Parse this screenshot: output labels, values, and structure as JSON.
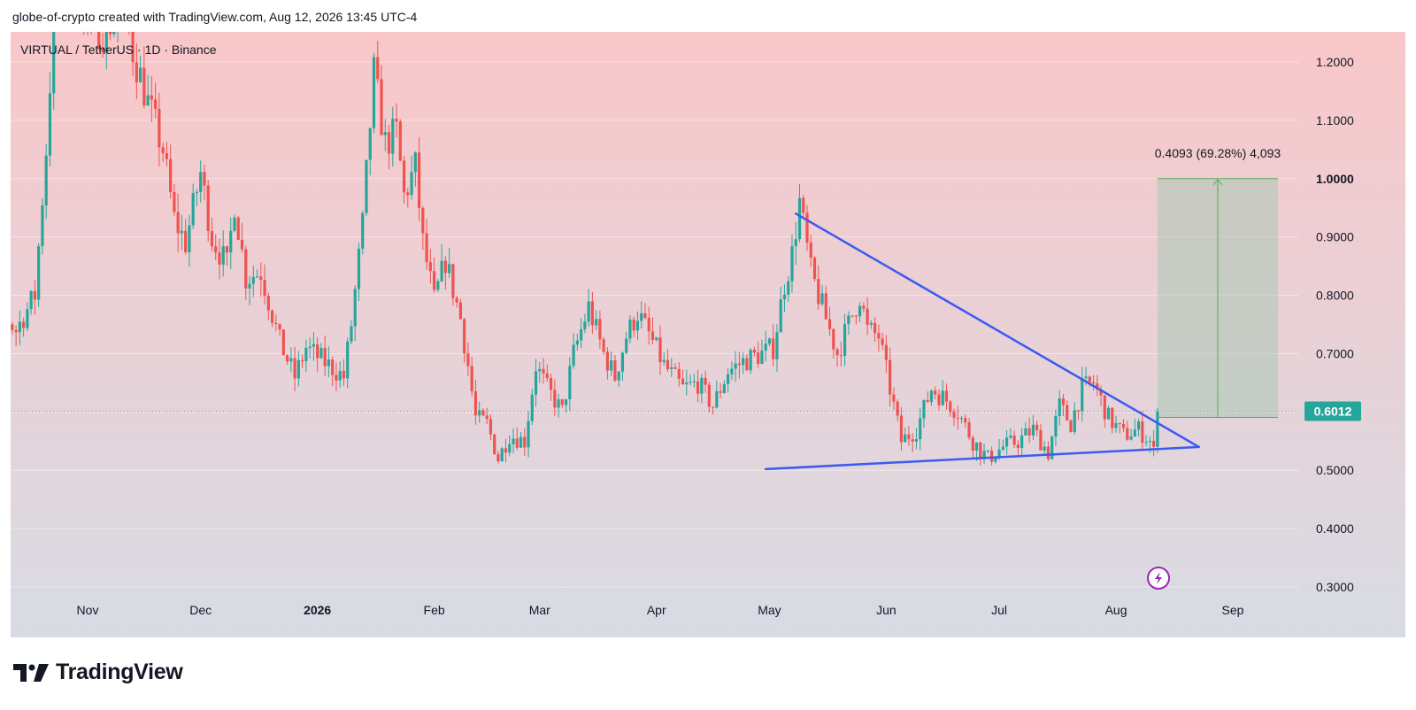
{
  "header": {
    "title": "globe-of-crypto created with TradingView.com, Aug 12, 2026 13:45 UTC-4"
  },
  "brand": {
    "name": "TradingView"
  },
  "colors": {
    "up": "#26a69a",
    "down": "#ef5350",
    "trendline": "#3b5bf0",
    "measure_zone": "#a9c9b6",
    "measure_line": "#4caf50",
    "bg_top": "#f9c7c9",
    "bg_bottom": "#d8dbe4"
  },
  "chart_data": {
    "type": "candlestick",
    "symbol_label": "VIRTUAL / TetherUS · 1D · Binance",
    "y_ticks": [
      "1.2000",
      "1.1000",
      "1.0000",
      "0.9000",
      "0.8000",
      "0.7000",
      "0.6000",
      "0.5000",
      "0.4000",
      "0.3000"
    ],
    "y_tick_values": [
      1.2,
      1.1,
      1.0,
      0.9,
      0.8,
      0.7,
      0.6,
      0.5,
      0.4,
      0.3
    ],
    "ylim": [
      0.25,
      1.26
    ],
    "x_tick_labels": [
      "Nov",
      "Dec",
      "2026",
      "Feb",
      "Mar",
      "Apr",
      "May",
      "Jun",
      "Jul",
      "Aug",
      "Sep"
    ],
    "x_tick_dates": [
      "2025-11-01",
      "2025-12-01",
      "2026-01-01",
      "2026-02-01",
      "2026-03-01",
      "2026-04-01",
      "2026-05-01",
      "2026-06-01",
      "2026-07-01",
      "2026-08-01",
      "2026-09-01"
    ],
    "last_price": "0.6012",
    "last_price_value": 0.6012,
    "measure": {
      "label": "0.4093 (69.28%) 4,093",
      "from_price": 0.5907,
      "to_price": 1.0,
      "from_date": "2026-08-12",
      "to_date": "2026-09-13"
    },
    "trendlines": [
      {
        "name": "descending resistance",
        "from": {
          "date": "2026-05-08",
          "price": 0.94
        },
        "to": {
          "date": "2026-08-23",
          "price": 0.54
        }
      },
      {
        "name": "ascending support",
        "from": {
          "date": "2026-04-30",
          "price": 0.502
        },
        "to": {
          "date": "2026-08-23",
          "price": 0.54
        }
      }
    ],
    "anchors": [
      [
        "2025-10-01",
        0.77
      ],
      [
        "2025-10-04",
        0.86
      ],
      [
        "2025-10-08",
        0.78
      ],
      [
        "2025-10-13",
        0.74
      ],
      [
        "2025-10-18",
        0.8
      ],
      [
        "2025-10-21",
        1.05
      ],
      [
        "2025-10-23",
        1.28
      ],
      [
        "2025-10-27",
        1.33
      ],
      [
        "2025-11-02",
        1.27
      ],
      [
        "2025-11-06",
        1.25
      ],
      [
        "2025-11-10",
        1.32
      ],
      [
        "2025-11-13",
        1.22
      ],
      [
        "2025-11-17",
        1.13
      ],
      [
        "2025-11-21",
        1.05
      ],
      [
        "2025-11-24",
        0.93
      ],
      [
        "2025-11-27",
        0.89
      ],
      [
        "2025-12-01",
        1.01
      ],
      [
        "2025-12-04",
        0.9
      ],
      [
        "2025-12-08",
        0.85
      ],
      [
        "2025-12-10",
        0.96
      ],
      [
        "2025-12-13",
        0.83
      ],
      [
        "2025-12-17",
        0.84
      ],
      [
        "2025-12-22",
        0.72
      ],
      [
        "2025-12-26",
        0.66
      ],
      [
        "2025-12-29",
        0.71
      ],
      [
        "2026-01-04",
        0.68
      ],
      [
        "2026-01-08",
        0.66
      ],
      [
        "2026-01-10",
        0.75
      ],
      [
        "2026-01-13",
        0.92
      ],
      [
        "2026-01-16",
        1.18
      ],
      [
        "2026-01-19",
        1.06
      ],
      [
        "2026-01-22",
        1.08
      ],
      [
        "2026-01-24",
        0.97
      ],
      [
        "2026-01-27",
        1.02
      ],
      [
        "2026-01-29",
        0.89
      ],
      [
        "2026-02-01",
        0.79
      ],
      [
        "2026-02-04",
        0.86
      ],
      [
        "2026-02-08",
        0.76
      ],
      [
        "2026-02-10",
        0.68
      ],
      [
        "2026-02-12",
        0.59
      ],
      [
        "2026-02-15",
        0.58
      ],
      [
        "2026-02-18",
        0.52
      ],
      [
        "2026-02-21",
        0.56
      ],
      [
        "2026-02-25",
        0.55
      ],
      [
        "2026-02-28",
        0.68
      ],
      [
        "2026-03-03",
        0.64
      ],
      [
        "2026-03-07",
        0.6
      ],
      [
        "2026-03-10",
        0.7
      ],
      [
        "2026-03-14",
        0.78
      ],
      [
        "2026-03-18",
        0.7
      ],
      [
        "2026-03-21",
        0.66
      ],
      [
        "2026-03-24",
        0.73
      ],
      [
        "2026-03-27",
        0.77
      ],
      [
        "2026-03-31",
        0.72
      ],
      [
        "2026-04-03",
        0.68
      ],
      [
        "2026-04-08",
        0.64
      ],
      [
        "2026-04-12",
        0.65
      ],
      [
        "2026-04-16",
        0.61
      ],
      [
        "2026-04-20",
        0.67
      ],
      [
        "2026-04-25",
        0.69
      ],
      [
        "2026-04-29",
        0.7
      ],
      [
        "2026-05-02",
        0.71
      ],
      [
        "2026-05-05",
        0.82
      ],
      [
        "2026-05-07",
        0.87
      ],
      [
        "2026-05-09",
        0.96
      ],
      [
        "2026-05-12",
        0.84
      ],
      [
        "2026-05-16",
        0.76
      ],
      [
        "2026-05-19",
        0.7
      ],
      [
        "2026-05-22",
        0.75
      ],
      [
        "2026-05-25",
        0.8
      ],
      [
        "2026-05-27",
        0.74
      ],
      [
        "2026-05-30",
        0.73
      ],
      [
        "2026-06-02",
        0.64
      ],
      [
        "2026-06-05",
        0.55
      ],
      [
        "2026-06-09",
        0.57
      ],
      [
        "2026-06-13",
        0.64
      ],
      [
        "2026-06-17",
        0.62
      ],
      [
        "2026-06-20",
        0.6
      ],
      [
        "2026-06-24",
        0.55
      ],
      [
        "2026-06-28",
        0.52
      ],
      [
        "2026-07-02",
        0.54
      ],
      [
        "2026-07-06",
        0.55
      ],
      [
        "2026-07-10",
        0.57
      ],
      [
        "2026-07-14",
        0.53
      ],
      [
        "2026-07-17",
        0.61
      ],
      [
        "2026-07-20",
        0.58
      ],
      [
        "2026-07-23",
        0.64
      ],
      [
        "2026-07-26",
        0.65
      ],
      [
        "2026-07-30",
        0.59
      ],
      [
        "2026-08-03",
        0.56
      ],
      [
        "2026-08-07",
        0.57
      ],
      [
        "2026-08-10",
        0.55
      ],
      [
        "2026-08-11",
        0.53
      ],
      [
        "2026-08-12",
        0.6012
      ]
    ]
  }
}
